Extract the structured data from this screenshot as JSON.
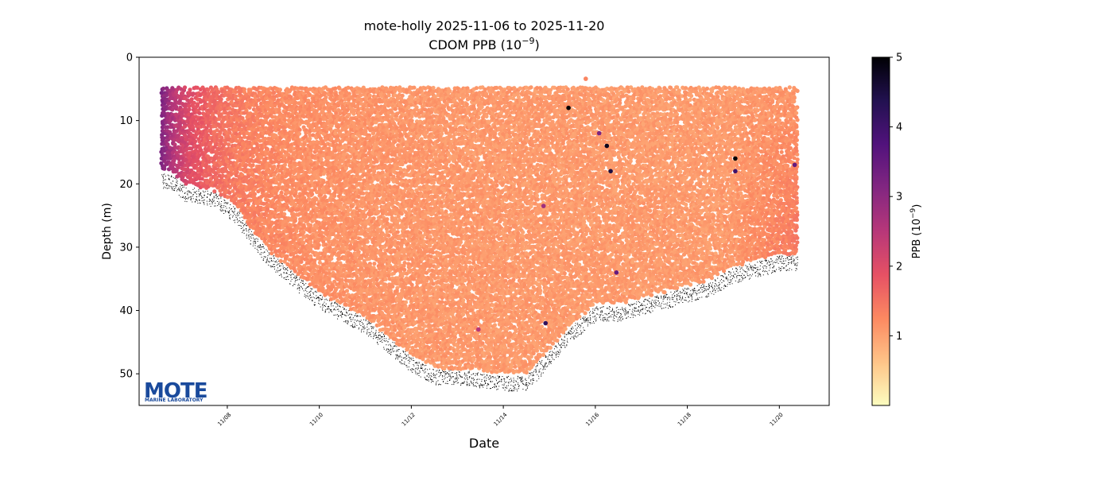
{
  "chart_data": {
    "type": "scatter",
    "title": "mote-holly 2025-11-06 to 2025-11-20",
    "subtitle": "CDOM PPB (10",
    "subtitle_exp": "−9",
    "subtitle_close": ")",
    "xlabel": "Date",
    "ylabel": "Depth (m)",
    "x_range": [
      "2025-11-06T02:00",
      "2025-11-21T02:00"
    ],
    "y_range": [
      55,
      0
    ],
    "y_inverted": true,
    "x_ticks": [
      {
        "date": "2025-11-08",
        "label": "11/08"
      },
      {
        "date": "2025-11-10",
        "label": "11/10"
      },
      {
        "date": "2025-11-12",
        "label": "11/12"
      },
      {
        "date": "2025-11-14",
        "label": "11/14"
      },
      {
        "date": "2025-11-16",
        "label": "11/16"
      },
      {
        "date": "2025-11-18",
        "label": "11/18"
      },
      {
        "date": "2025-11-20",
        "label": "11/20"
      }
    ],
    "y_ticks": [
      0,
      10,
      20,
      30,
      40,
      50
    ],
    "grid": false,
    "colorbar": {
      "label": "PPB (10",
      "label_exp": "−9",
      "label_close": ")",
      "range": [
        0,
        5
      ],
      "ticks": [
        1,
        2,
        3,
        4,
        5
      ],
      "colormap": "magma_r",
      "colors": [
        "#fcfdbf",
        "#fec488",
        "#fc8961",
        "#e65164",
        "#b73779",
        "#822681",
        "#51127c",
        "#221150",
        "#000004"
      ]
    },
    "profile_top_depth": 5,
    "seafloor_profile": [
      {
        "date": "2025-11-06T18:00",
        "depth": 18
      },
      {
        "date": "2025-11-07T02:00",
        "depth": 20
      },
      {
        "date": "2025-11-07T18:00",
        "depth": 21
      },
      {
        "date": "2025-11-08T06:00",
        "depth": 24
      },
      {
        "date": "2025-11-08T12:00",
        "depth": 27
      },
      {
        "date": "2025-11-09T00:00",
        "depth": 31
      },
      {
        "date": "2025-11-09T12:00",
        "depth": 34
      },
      {
        "date": "2025-11-10T00:00",
        "depth": 37
      },
      {
        "date": "2025-11-10T12:00",
        "depth": 39
      },
      {
        "date": "2025-11-11T00:00",
        "depth": 41
      },
      {
        "date": "2025-11-11T12:00",
        "depth": 44
      },
      {
        "date": "2025-11-12T00:00",
        "depth": 47
      },
      {
        "date": "2025-11-12T12:00",
        "depth": 49
      },
      {
        "date": "2025-11-13T00:00",
        "depth": 49
      },
      {
        "date": "2025-11-13T12:00",
        "depth": 49.5
      },
      {
        "date": "2025-11-14T00:00",
        "depth": 50
      },
      {
        "date": "2025-11-14T12:00",
        "depth": 50
      },
      {
        "date": "2025-11-15T00:00",
        "depth": 46
      },
      {
        "date": "2025-11-15T12:00",
        "depth": 42
      },
      {
        "date": "2025-11-16T00:00",
        "depth": 39
      },
      {
        "date": "2025-11-16T12:00",
        "depth": 39
      },
      {
        "date": "2025-11-17T00:00",
        "depth": 38
      },
      {
        "date": "2025-11-17T12:00",
        "depth": 37
      },
      {
        "date": "2025-11-18T00:00",
        "depth": 36
      },
      {
        "date": "2025-11-18T12:00",
        "depth": 35
      },
      {
        "date": "2025-11-19T00:00",
        "depth": 33
      },
      {
        "date": "2025-11-19T12:00",
        "depth": 32
      },
      {
        "date": "2025-11-20T00:00",
        "depth": 31
      },
      {
        "date": "2025-11-20T09:00",
        "depth": 31
      }
    ],
    "high_value_points": [
      {
        "date": "2025-11-15T10:00",
        "depth": 8,
        "value": 5
      },
      {
        "date": "2025-11-16T02:00",
        "depth": 12,
        "value": 3.2
      },
      {
        "date": "2025-11-16T06:00",
        "depth": 14,
        "value": 4.8
      },
      {
        "date": "2025-11-16T08:00",
        "depth": 18,
        "value": 4.5
      },
      {
        "date": "2025-11-16T11:00",
        "depth": 34,
        "value": 3.5
      },
      {
        "date": "2025-11-14T22:00",
        "depth": 42,
        "value": 4.2
      },
      {
        "date": "2025-11-19T01:00",
        "depth": 16,
        "value": 5
      },
      {
        "date": "2025-11-19T01:00",
        "depth": 18,
        "value": 4
      },
      {
        "date": "2025-11-13T11:00",
        "depth": 43,
        "value": 2.5
      },
      {
        "date": "2025-11-14T21:00",
        "depth": 23.5,
        "value": 2.8
      },
      {
        "date": "2025-11-20T08:00",
        "depth": 17,
        "value": 3.5
      }
    ],
    "outlier_surface_point": {
      "date": "2025-11-15T19:00",
      "depth": 3.4,
      "value": 1.3
    }
  },
  "logo": {
    "text": "MOTE",
    "subtext": "MARINE LABORATORY",
    "color": "#1a4a9c"
  }
}
